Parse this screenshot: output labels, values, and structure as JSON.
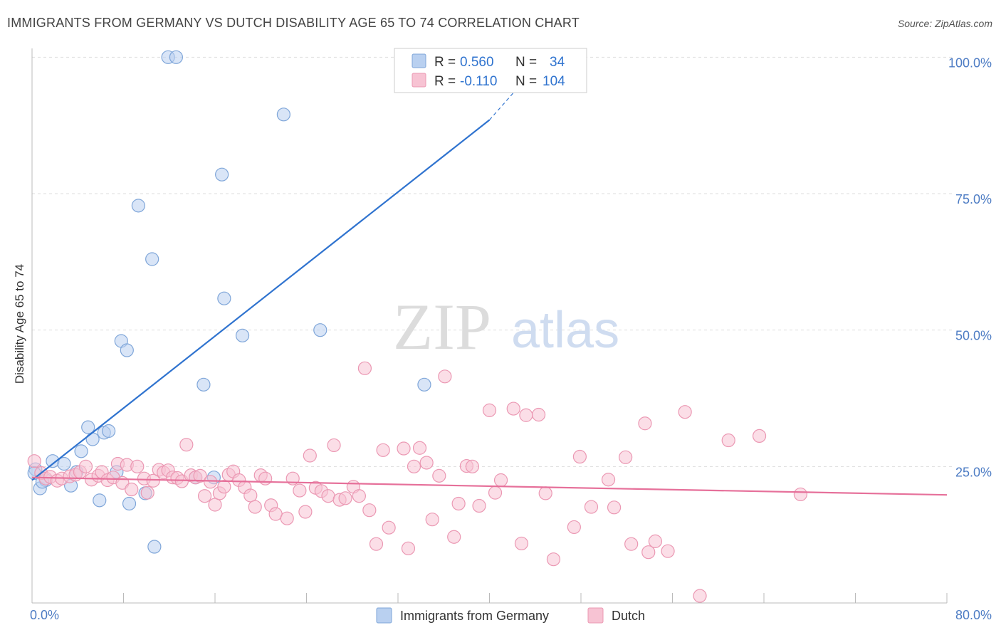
{
  "title": "IMMIGRANTS FROM GERMANY VS DUTCH DISABILITY AGE 65 TO 74 CORRELATION CHART",
  "source": "Source: ZipAtlas.com",
  "watermark": {
    "zip": "ZIP",
    "atlas": "atlas"
  },
  "colors": {
    "germany_fill": "#b9d0f0",
    "germany_stroke": "#7fa6d9",
    "germany_line": "#2f73cf",
    "dutch_fill": "#f7c3d3",
    "dutch_stroke": "#eb98b3",
    "dutch_line": "#e6709a",
    "grid": "#dddddd",
    "tick_text": "#4d7cc4"
  },
  "legend": {
    "rows": [
      {
        "r_label": "R =",
        "r_value": "0.560",
        "n_label": "N =",
        "n_value": "34"
      },
      {
        "r_label": "R =",
        "r_value": "-0.110",
        "n_label": "N =",
        "n_value": "104"
      }
    ]
  },
  "chart_data": {
    "type": "scatter",
    "title": "IMMIGRANTS FROM GERMANY VS DUTCH DISABILITY AGE 65 TO 74 CORRELATION CHART",
    "xlabel": "",
    "ylabel": "Disability Age 65 to 74",
    "xlim": [
      0,
      80
    ],
    "ylim": [
      0,
      102
    ],
    "x_tick_labels": {
      "left": "0.0%",
      "right": "80.0%"
    },
    "y_ticks": [
      {
        "value": 25,
        "label": "25.0%"
      },
      {
        "value": 50,
        "label": "50.0%"
      },
      {
        "value": 75,
        "label": "75.0%"
      },
      {
        "value": 100,
        "label": "100.0%"
      }
    ],
    "grid": true,
    "legend_placement": "top-center",
    "series": [
      {
        "name": "Immigrants from Germany",
        "trend": {
          "x": [
            0,
            40
          ],
          "y": [
            22.5,
            88.5
          ],
          "dashed_to": [
            44,
            98
          ]
        },
        "points": [
          [
            0.3,
            24.5
          ],
          [
            0.7,
            21.0
          ],
          [
            1.2,
            22.5
          ],
          [
            1.8,
            26.0
          ],
          [
            2.8,
            25.5
          ],
          [
            3.4,
            21.5
          ],
          [
            3.9,
            24.0
          ],
          [
            4.3,
            27.8
          ],
          [
            4.9,
            32.2
          ],
          [
            5.3,
            30.0
          ],
          [
            5.9,
            18.8
          ],
          [
            6.3,
            31.2
          ],
          [
            6.7,
            31.5
          ],
          [
            7.4,
            24.0
          ],
          [
            7.8,
            48.0
          ],
          [
            8.3,
            46.3
          ],
          [
            8.5,
            18.2
          ],
          [
            9.3,
            72.8
          ],
          [
            9.9,
            20.1
          ],
          [
            10.5,
            63.0
          ],
          [
            10.7,
            10.3
          ],
          [
            11.9,
            100.0
          ],
          [
            12.6,
            100.0
          ],
          [
            14.3,
            23.0
          ],
          [
            15.0,
            40.0
          ],
          [
            15.9,
            23.0
          ],
          [
            16.6,
            78.5
          ],
          [
            16.8,
            55.8
          ],
          [
            18.4,
            49.0
          ],
          [
            22.0,
            89.5
          ],
          [
            25.2,
            50.0
          ],
          [
            34.3,
            40.0
          ],
          [
            0.2,
            23.8
          ],
          [
            0.9,
            22.2
          ]
        ]
      },
      {
        "name": "Dutch",
        "trend": {
          "x": [
            0,
            80
          ],
          "y": [
            23.0,
            19.8
          ]
        },
        "points": [
          [
            0.2,
            26.0
          ],
          [
            0.8,
            23.8
          ],
          [
            1.2,
            22.8
          ],
          [
            1.6,
            23.1
          ],
          [
            2.2,
            22.4
          ],
          [
            2.6,
            22.8
          ],
          [
            3.3,
            23.2
          ],
          [
            3.8,
            23.5
          ],
          [
            4.2,
            24.0
          ],
          [
            4.7,
            25.0
          ],
          [
            5.2,
            22.6
          ],
          [
            5.8,
            23.3
          ],
          [
            6.1,
            24.0
          ],
          [
            6.6,
            22.5
          ],
          [
            7.1,
            23.0
          ],
          [
            7.5,
            25.5
          ],
          [
            7.9,
            22.0
          ],
          [
            8.3,
            25.3
          ],
          [
            8.7,
            20.8
          ],
          [
            9.2,
            25.0
          ],
          [
            9.8,
            22.8
          ],
          [
            10.1,
            20.2
          ],
          [
            10.6,
            22.4
          ],
          [
            11.1,
            24.4
          ],
          [
            11.5,
            23.9
          ],
          [
            11.9,
            24.3
          ],
          [
            12.3,
            23.0
          ],
          [
            12.7,
            22.9
          ],
          [
            13.1,
            22.3
          ],
          [
            13.5,
            29.0
          ],
          [
            13.9,
            23.4
          ],
          [
            14.3,
            23.0
          ],
          [
            14.7,
            23.3
          ],
          [
            15.1,
            19.6
          ],
          [
            15.6,
            22.2
          ],
          [
            16.0,
            18.0
          ],
          [
            16.4,
            20.1
          ],
          [
            16.8,
            21.3
          ],
          [
            17.2,
            23.5
          ],
          [
            17.6,
            24.1
          ],
          [
            18.1,
            22.5
          ],
          [
            18.6,
            21.2
          ],
          [
            19.1,
            19.7
          ],
          [
            19.5,
            17.6
          ],
          [
            20.0,
            23.4
          ],
          [
            20.4,
            22.8
          ],
          [
            20.9,
            17.9
          ],
          [
            21.3,
            16.3
          ],
          [
            22.3,
            15.5
          ],
          [
            22.8,
            22.8
          ],
          [
            23.4,
            20.6
          ],
          [
            23.9,
            16.7
          ],
          [
            24.3,
            27.0
          ],
          [
            24.8,
            21.1
          ],
          [
            25.3,
            20.5
          ],
          [
            25.9,
            19.6
          ],
          [
            26.4,
            28.9
          ],
          [
            26.9,
            18.9
          ],
          [
            27.4,
            19.2
          ],
          [
            28.1,
            21.3
          ],
          [
            28.6,
            19.6
          ],
          [
            29.1,
            43.0
          ],
          [
            29.5,
            17.0
          ],
          [
            30.1,
            10.8
          ],
          [
            30.7,
            28.0
          ],
          [
            31.2,
            13.8
          ],
          [
            32.5,
            28.3
          ],
          [
            32.9,
            10.0
          ],
          [
            33.4,
            25.0
          ],
          [
            33.9,
            28.4
          ],
          [
            34.5,
            25.7
          ],
          [
            35.0,
            15.3
          ],
          [
            35.6,
            23.3
          ],
          [
            36.1,
            41.5
          ],
          [
            36.9,
            12.1
          ],
          [
            37.3,
            18.2
          ],
          [
            38.0,
            25.1
          ],
          [
            38.5,
            25.0
          ],
          [
            39.1,
            17.8
          ],
          [
            40.0,
            35.3
          ],
          [
            40.5,
            20.2
          ],
          [
            41.0,
            22.5
          ],
          [
            42.1,
            35.6
          ],
          [
            42.8,
            10.9
          ],
          [
            43.2,
            34.4
          ],
          [
            44.3,
            34.5
          ],
          [
            44.9,
            20.1
          ],
          [
            45.6,
            8.0
          ],
          [
            47.4,
            13.9
          ],
          [
            47.9,
            26.8
          ],
          [
            48.9,
            17.6
          ],
          [
            50.4,
            22.6
          ],
          [
            50.9,
            17.5
          ],
          [
            51.9,
            26.7
          ],
          [
            52.4,
            10.8
          ],
          [
            53.6,
            32.9
          ],
          [
            53.9,
            9.3
          ],
          [
            54.5,
            11.3
          ],
          [
            55.6,
            9.5
          ],
          [
            57.1,
            35.0
          ],
          [
            58.4,
            1.3
          ],
          [
            60.9,
            29.8
          ],
          [
            63.6,
            30.6
          ],
          [
            67.2,
            19.9
          ]
        ]
      }
    ],
    "bottom_legend": [
      "Immigrants from Germany",
      "Dutch"
    ]
  }
}
